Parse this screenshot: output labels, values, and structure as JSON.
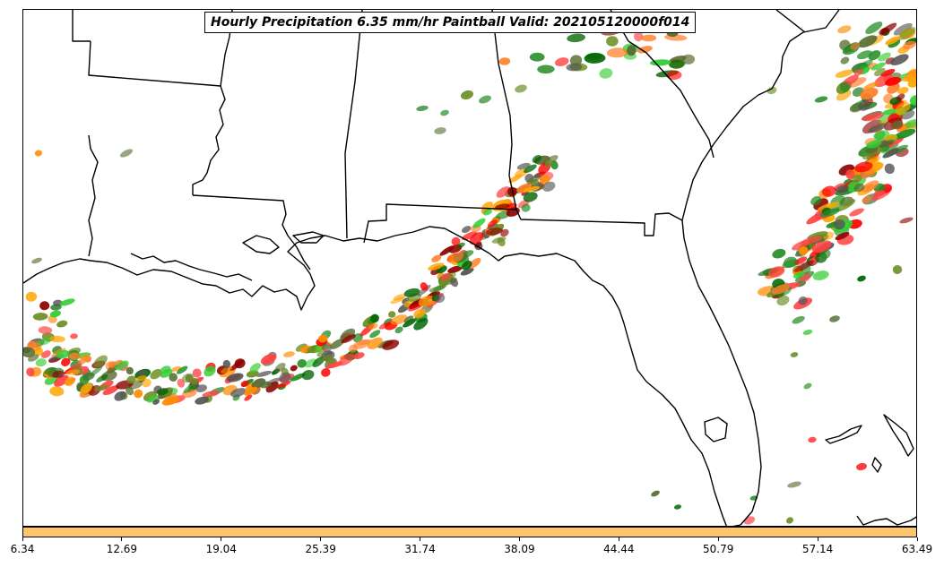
{
  "title": "Hourly Precipitation 6.35 mm/hr Paintball Valid: 202105120000f014",
  "colorbar": {
    "color": "#ffc56a",
    "ticks": [
      "6.34",
      "12.69",
      "19.04",
      "25.39",
      "31.74",
      "38.09",
      "44.44",
      "50.79",
      "57.14",
      "63.49"
    ]
  },
  "member_colors": [
    "#ff0000",
    "#ff8c00",
    "#ff7f2a",
    "#ffa500",
    "#228b22",
    "#006400",
    "#32cd32",
    "#556b2f",
    "#8b0000",
    "#6b8e23",
    "#555555",
    "#ff4444"
  ]
}
